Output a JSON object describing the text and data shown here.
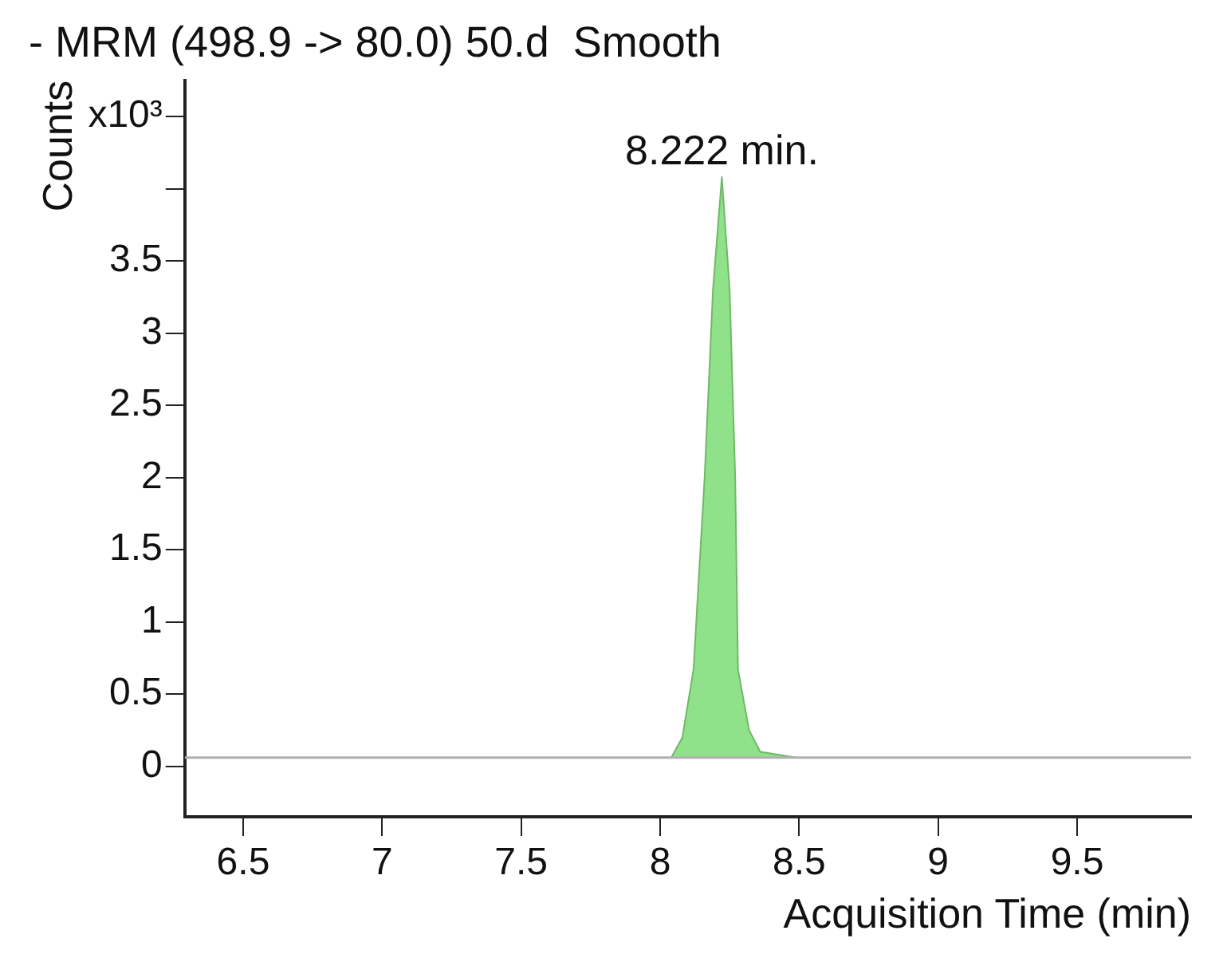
{
  "chart_data": {
    "type": "area",
    "title": "- MRM (498.9 -> 80.0) 50.d  Smooth",
    "xlabel": "Acquisition Time (min)",
    "ylabel": "Counts",
    "series": [
      {
        "type": "line",
        "color": "#b0b0b0",
        "x": [
          6.29,
          9.91
        ],
        "values": [
          0.06,
          0.06
        ]
      },
      {
        "color": "#90e28a",
        "x": [
          8.04,
          8.08,
          8.12,
          8.16,
          8.19,
          8.222,
          8.25,
          8.27,
          8.28,
          8.32,
          8.36,
          8.49
        ],
        "values": [
          0.06,
          0.2,
          0.67,
          2.0,
          3.3,
          4.08,
          3.3,
          2.0,
          0.67,
          0.25,
          0.1,
          0.06
        ]
      }
    ],
    "xlim": [
      6.29,
      9.91
    ],
    "xticks": [
      6.5,
      7,
      7.5,
      8,
      8.5,
      9,
      9.5
    ],
    "ylim": [
      -0.35,
      4.75
    ],
    "yticks": [
      0,
      0.5,
      1,
      1.5,
      2,
      2.5,
      3,
      3.5,
      {
        "value": 4,
        "label": null
      },
      {
        "value": 4.5,
        "label": "x10³"
      }
    ],
    "annotations": [
      {
        "text": "8.222 min.",
        "x": 8.222,
        "y": 4.08
      }
    ],
    "grid": false,
    "legend": false
  }
}
